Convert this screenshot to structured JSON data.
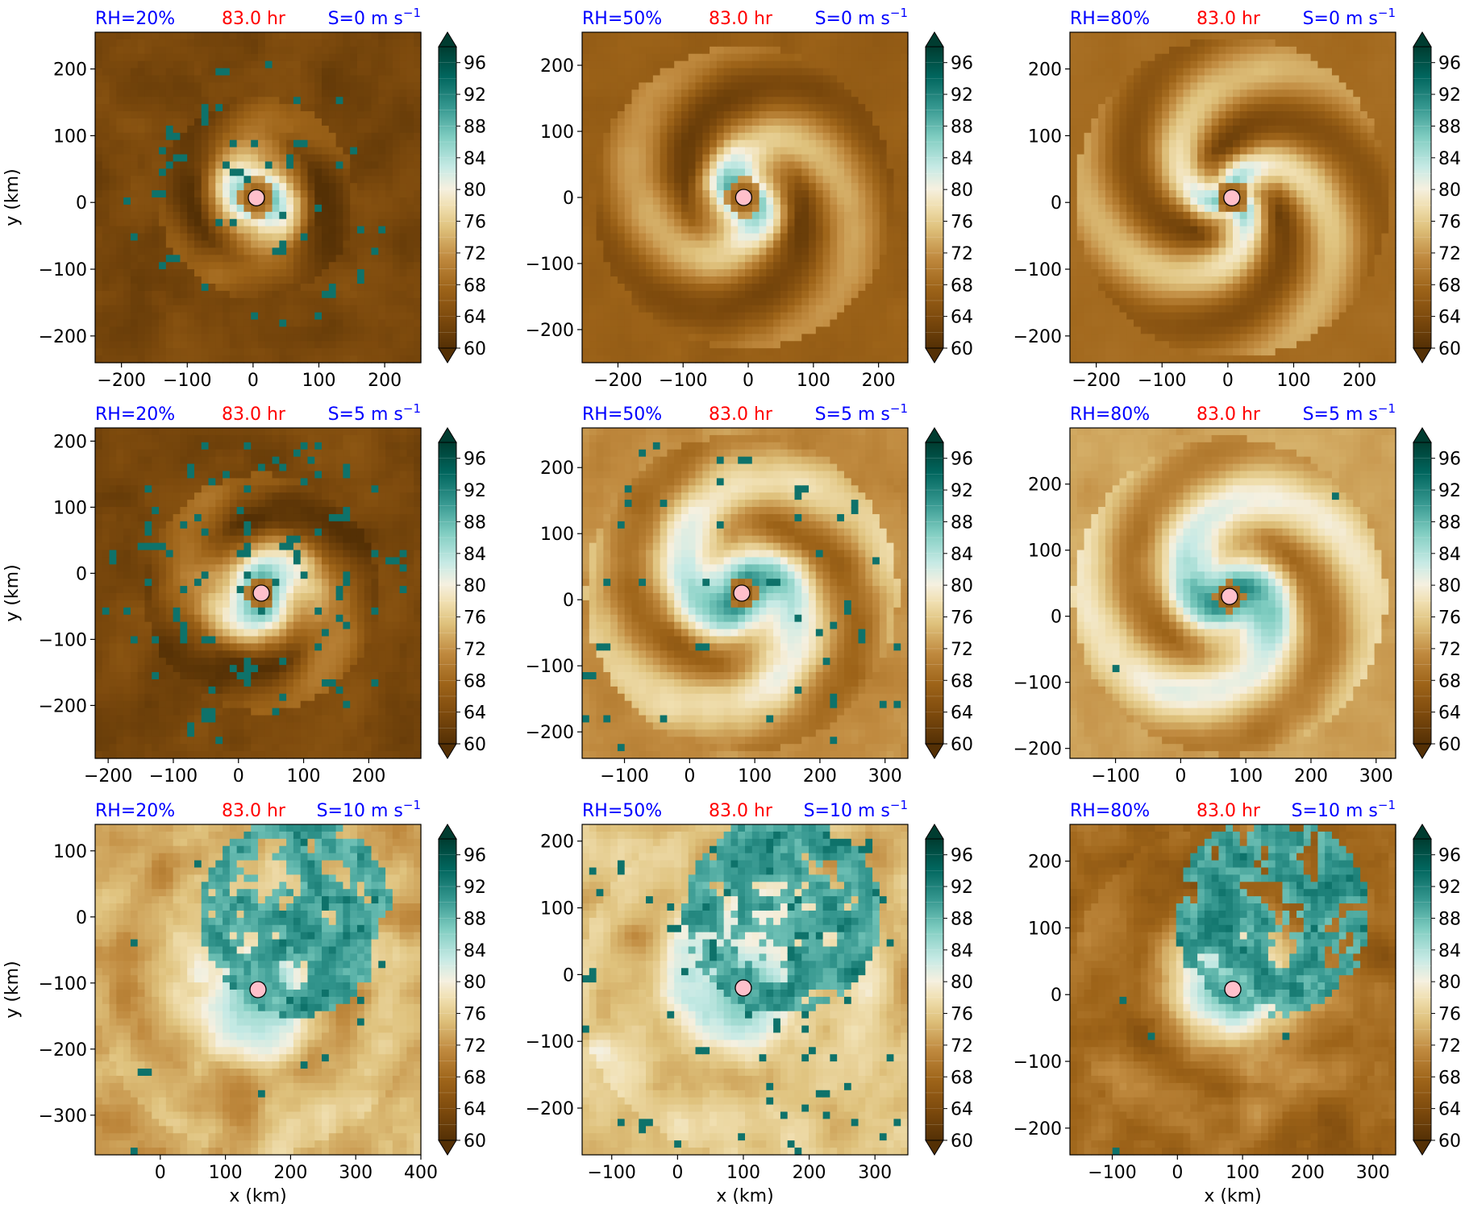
{
  "figure": {
    "time_label": "83.0 hr",
    "xlabel": "x (km)",
    "ylabel": "y (km)",
    "colors": {
      "rh_label": "#0000ff",
      "time_label": "#ff0000",
      "shear_label": "#0000ff",
      "center_marker": "#ffc0cb",
      "center_marker_edge": "#000000"
    }
  },
  "colorbar": {
    "colormap": "BrBG",
    "vmin": 60,
    "vmax": 98,
    "levels_step": 2,
    "extend": "both",
    "ticks": [
      "60",
      "64",
      "68",
      "72",
      "76",
      "80",
      "84",
      "88",
      "92",
      "96"
    ]
  },
  "chart_data": [
    {
      "type": "heatmap",
      "rh_label": "RH=20%",
      "time_label": "83.0 hr",
      "shear_label": "S=0 m s",
      "shear_exp": "−1",
      "xlabel": "",
      "ylabel": "y (km)",
      "xlim": [
        -240,
        255
      ],
      "ylim": [
        -240,
        255
      ],
      "xticks": [
        -200,
        -100,
        0,
        100,
        200
      ],
      "yticks": [
        -200,
        -100,
        0,
        100,
        200
      ],
      "center": [
        5,
        7
      ],
      "eye_radius": 18,
      "core_radius": 95,
      "band_extent": 150,
      "rotation": 0,
      "pattern": "symmetric-dry"
    },
    {
      "type": "heatmap",
      "rh_label": "RH=50%",
      "time_label": "83.0 hr",
      "shear_label": "S=0 m s",
      "shear_exp": "−1",
      "xlabel": "",
      "ylabel": "",
      "xlim": [
        -255,
        245
      ],
      "ylim": [
        -250,
        250
      ],
      "xticks": [
        -200,
        -100,
        0,
        100,
        200
      ],
      "yticks": [
        -200,
        -100,
        0,
        100,
        200
      ],
      "center": [
        -7,
        0
      ],
      "eye_radius": 18,
      "core_radius": 90,
      "band_extent": 230,
      "rotation": 1,
      "pattern": "symmetric-moist"
    },
    {
      "type": "heatmap",
      "rh_label": "RH=80%",
      "time_label": "83.0 hr",
      "shear_label": "S=0 m s",
      "shear_exp": "−1",
      "xlabel": "",
      "ylabel": "",
      "xlim": [
        -240,
        255
      ],
      "ylim": [
        -240,
        255
      ],
      "xticks": [
        -200,
        -100,
        0,
        100,
        200
      ],
      "yticks": [
        -200,
        -100,
        0,
        100,
        200
      ],
      "center": [
        6,
        7
      ],
      "eye_radius": 16,
      "core_radius": 75,
      "band_extent": 240,
      "rotation": 2,
      "pattern": "symmetric-wet"
    },
    {
      "type": "heatmap",
      "rh_label": "RH=20%",
      "time_label": "83.0 hr",
      "shear_label": "S=5 m s",
      "shear_exp": "−1",
      "xlabel": "",
      "ylabel": "y (km)",
      "xlim": [
        -220,
        280
      ],
      "ylim": [
        -280,
        220
      ],
      "xticks": [
        -200,
        -100,
        0,
        100,
        200
      ],
      "yticks": [
        -200,
        -100,
        0,
        100,
        200
      ],
      "center": [
        35,
        -30
      ],
      "eye_radius": 14,
      "core_radius": 110,
      "band_extent": 180,
      "rotation": 3,
      "pattern": "sheared-dry"
    },
    {
      "type": "heatmap",
      "rh_label": "RH=50%",
      "time_label": "83.0 hr",
      "shear_label": "S=5 m s",
      "shear_exp": "−1",
      "xlabel": "",
      "ylabel": "",
      "xlim": [
        -165,
        335
      ],
      "ylim": [
        -240,
        260
      ],
      "xticks": [
        -100,
        0,
        100,
        200,
        300
      ],
      "yticks": [
        -200,
        -100,
        0,
        100,
        200
      ],
      "center": [
        80,
        10
      ],
      "eye_radius": 14,
      "core_radius": 120,
      "band_extent": 240,
      "rotation": 4,
      "pattern": "sheared-moist"
    },
    {
      "type": "heatmap",
      "rh_label": "RH=80%",
      "time_label": "83.0 hr",
      "shear_label": "S=5 m s",
      "shear_exp": "−1",
      "xlabel": "",
      "ylabel": "",
      "xlim": [
        -170,
        330
      ],
      "ylim": [
        -215,
        285
      ],
      "xticks": [
        -100,
        0,
        100,
        200,
        300
      ],
      "yticks": [
        -200,
        -100,
        0,
        100,
        200
      ],
      "center": [
        75,
        30
      ],
      "eye_radius": 14,
      "core_radius": 110,
      "band_extent": 240,
      "rotation": 5,
      "pattern": "sheared-wet"
    },
    {
      "type": "heatmap",
      "rh_label": "RH=20%",
      "time_label": "83.0 hr",
      "shear_label": "S=10 m s",
      "shear_exp": "−1",
      "xlabel": "x (km)",
      "ylabel": "y (km)",
      "xlim": [
        -100,
        400
      ],
      "ylim": [
        -360,
        140
      ],
      "xticks": [
        0,
        100,
        200,
        300,
        400
      ],
      "yticks": [
        -300,
        -200,
        -100,
        0,
        100
      ],
      "center": [
        150,
        -110
      ],
      "eye_radius": 0,
      "core_radius": 130,
      "band_extent": 250,
      "rotation": 6,
      "pattern": "strong-shear-dry"
    },
    {
      "type": "heatmap",
      "rh_label": "RH=50%",
      "time_label": "83.0 hr",
      "shear_label": "S=10 m s",
      "shear_exp": "−1",
      "xlabel": "x (km)",
      "ylabel": "",
      "xlim": [
        -145,
        350
      ],
      "ylim": [
        -270,
        225
      ],
      "xticks": [
        -100,
        0,
        100,
        200,
        300
      ],
      "yticks": [
        -200,
        -100,
        0,
        100,
        200
      ],
      "center": [
        100,
        -20
      ],
      "eye_radius": 0,
      "core_radius": 140,
      "band_extent": 250,
      "rotation": 7,
      "pattern": "strong-shear-moist"
    },
    {
      "type": "heatmap",
      "rh_label": "RH=80%",
      "time_label": "83.0 hr",
      "shear_label": "S=10 m s",
      "shear_exp": "−1",
      "xlabel": "x (km)",
      "ylabel": "",
      "xlim": [
        -165,
        335
      ],
      "ylim": [
        -240,
        255
      ],
      "xticks": [
        -100,
        0,
        100,
        200,
        300
      ],
      "yticks": [
        -200,
        -100,
        0,
        100,
        200
      ],
      "center": [
        85,
        8
      ],
      "eye_radius": 0,
      "core_radius": 150,
      "band_extent": 250,
      "rotation": 8,
      "pattern": "strong-shear-wet"
    }
  ]
}
